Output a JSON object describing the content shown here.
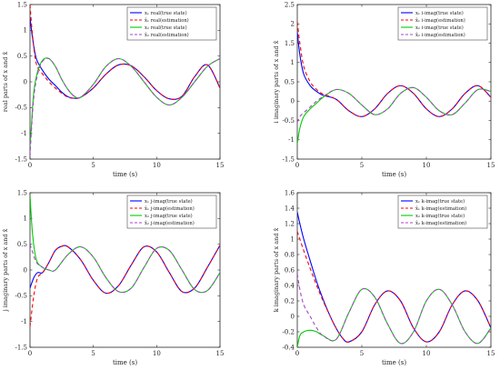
{
  "chart_data": [
    {
      "type": "line",
      "xlabel": "",
      "ylabel": "real parts of x and x̂",
      "xlim": [
        0,
        15
      ],
      "ylim": [
        -1.5,
        1.5
      ],
      "xticks": [
        0,
        5,
        10,
        15
      ],
      "yticks": [
        -1.5,
        -1,
        -0.5,
        0,
        0.5,
        1,
        1.5
      ],
      "ytick_labels": [
        "-1.5",
        "-1",
        "-0.5",
        "0",
        "0.5",
        "1",
        "1.5"
      ],
      "grid": false,
      "legend": "top-right",
      "series": [
        {
          "name": "x₁ real(true state)",
          "color": "#0000ff",
          "dash": "",
          "x": [
            0,
            0.2,
            0.5,
            1,
            1.5,
            2,
            2.5,
            3,
            3.5,
            4,
            5,
            6,
            7,
            8,
            9,
            10,
            11,
            12,
            13,
            14,
            15
          ],
          "y": [
            1.25,
            0.85,
            0.45,
            0.22,
            0.05,
            -0.07,
            -0.2,
            -0.29,
            -0.32,
            -0.3,
            -0.12,
            0.15,
            0.33,
            0.31,
            0.1,
            -0.17,
            -0.33,
            -0.28,
            0.1,
            0.33,
            -0.12
          ]
        },
        {
          "name": "x̂₁ real(estimation)",
          "color": "#ff0000",
          "dash": "4,3",
          "x": [
            0,
            0.2,
            0.5,
            1,
            1.5,
            2,
            2.5,
            3,
            3.5,
            4,
            5,
            6,
            7,
            8,
            9,
            10,
            11,
            12,
            13,
            14,
            15
          ],
          "y": [
            1.5,
            0.9,
            0.35,
            0.15,
            0.0,
            -0.12,
            -0.22,
            -0.3,
            -0.32,
            -0.3,
            -0.12,
            0.15,
            0.33,
            0.31,
            0.1,
            -0.17,
            -0.33,
            -0.28,
            0.1,
            0.33,
            -0.12
          ]
        },
        {
          "name": "x₂ real(true state)",
          "color": "#00cc00",
          "dash": "",
          "x": [
            0,
            0.1,
            0.3,
            0.6,
            1,
            1.5,
            2,
            2.5,
            3,
            3.5,
            4,
            5,
            6,
            7,
            8,
            9,
            10,
            11,
            12,
            13,
            14,
            15
          ],
          "y": [
            -1.25,
            -0.9,
            -0.2,
            0.2,
            0.42,
            0.45,
            0.3,
            0.05,
            -0.15,
            -0.28,
            -0.3,
            -0.05,
            0.3,
            0.45,
            0.3,
            0.0,
            -0.3,
            -0.45,
            -0.3,
            0.0,
            0.3,
            0.45
          ]
        },
        {
          "name": "x̂₂ real(estimation)",
          "color": "#aa44cc",
          "dash": "4,3",
          "x": [
            0,
            0.1,
            0.3,
            0.6,
            1,
            1.5,
            2,
            2.5,
            3,
            3.5,
            4,
            5,
            6,
            7,
            8,
            9,
            10,
            11,
            12,
            13,
            14,
            15
          ],
          "y": [
            -1.45,
            -1.0,
            -0.3,
            0.15,
            0.4,
            0.45,
            0.3,
            0.05,
            -0.15,
            -0.28,
            -0.3,
            -0.05,
            0.3,
            0.45,
            0.3,
            0.0,
            -0.3,
            -0.45,
            -0.3,
            0.0,
            0.3,
            0.45
          ]
        }
      ]
    },
    {
      "type": "line",
      "xlabel": "",
      "ylabel": "i imaginary parts of x and x̂",
      "xlim": [
        0,
        15
      ],
      "ylim": [
        -1.5,
        2.5
      ],
      "xticks": [
        0,
        5,
        10,
        15
      ],
      "yticks": [
        -1.5,
        -1,
        -0.5,
        0,
        0.5,
        1,
        1.5,
        2,
        2.5
      ],
      "ytick_labels": [
        "-1.5",
        "-1",
        "-0.5",
        "0",
        "0.5",
        "1",
        "1.5",
        "2",
        "2.5"
      ],
      "grid": false,
      "legend": "top-right",
      "series": [
        {
          "name": "x₁ i-imag(true state)",
          "color": "#0000ff",
          "dash": "",
          "x": [
            0,
            0.2,
            0.5,
            1,
            1.5,
            2,
            3,
            4,
            5,
            6,
            7,
            8,
            9,
            10,
            11,
            12,
            13,
            14,
            15
          ],
          "y": [
            1.8,
            1.2,
            0.7,
            0.4,
            0.25,
            0.15,
            0.05,
            -0.25,
            -0.4,
            -0.2,
            0.2,
            0.4,
            0.2,
            -0.2,
            -0.4,
            -0.2,
            0.2,
            0.4,
            0.1
          ]
        },
        {
          "name": "x̂₁ i-imag(estimation)",
          "color": "#ff0000",
          "dash": "4,3",
          "x": [
            0,
            0.2,
            0.5,
            1,
            1.5,
            2,
            3,
            4,
            5,
            6,
            7,
            8,
            9,
            10,
            11,
            12,
            13,
            14,
            15
          ],
          "y": [
            2.05,
            1.5,
            0.9,
            0.5,
            0.3,
            0.18,
            0.05,
            -0.25,
            -0.4,
            -0.2,
            0.2,
            0.4,
            0.2,
            -0.2,
            -0.4,
            -0.2,
            0.2,
            0.4,
            0.1
          ]
        },
        {
          "name": "x₂ i-imag(true state)",
          "color": "#00cc00",
          "dash": "",
          "x": [
            0,
            0.2,
            0.5,
            1,
            1.5,
            2,
            3,
            4,
            5,
            6,
            7,
            8,
            9,
            10,
            11,
            12,
            13,
            14,
            15
          ],
          "y": [
            -1.1,
            -0.7,
            -0.4,
            -0.2,
            -0.05,
            0.1,
            0.3,
            0.2,
            -0.1,
            -0.35,
            -0.2,
            0.2,
            0.35,
            0.1,
            -0.25,
            -0.35,
            -0.05,
            0.3,
            0.25
          ]
        },
        {
          "name": "x̂₂ i-imag(estimation)",
          "color": "#aa44cc",
          "dash": "4,3",
          "x": [
            0,
            0.2,
            0.5,
            1,
            1.5,
            2,
            3,
            4,
            5,
            6,
            7,
            8,
            9,
            10,
            11,
            12,
            13,
            14,
            15
          ],
          "y": [
            -0.55,
            -0.4,
            -0.3,
            -0.15,
            0.0,
            0.12,
            0.3,
            0.2,
            -0.1,
            -0.35,
            -0.2,
            0.2,
            0.35,
            0.1,
            -0.25,
            -0.35,
            -0.05,
            0.3,
            0.25
          ]
        }
      ]
    },
    {
      "type": "line",
      "xlabel": "",
      "ylabel": "j imaginary parts of x and x̂",
      "xlim": [
        0,
        15
      ],
      "ylim": [
        -1.5,
        1.5
      ],
      "xticks": [
        0,
        5,
        10,
        15
      ],
      "yticks": [
        -1.5,
        -1,
        -0.5,
        0,
        0.5,
        1,
        1.5
      ],
      "ytick_labels": [
        "-1.5",
        "-1",
        "-0.5",
        "0",
        "0.5",
        "1",
        "1.5"
      ],
      "grid": false,
      "legend": "top-right",
      "series": [
        {
          "name": "x₁ j-imag(true state)",
          "color": "#0000ff",
          "dash": "",
          "x": [
            0,
            0.3,
            0.6,
            1,
            1.5,
            2,
            2.5,
            3,
            4,
            5,
            6,
            7,
            8,
            9,
            10,
            11,
            12,
            13,
            14,
            15
          ],
          "y": [
            -0.35,
            -0.15,
            -0.05,
            -0.05,
            0.15,
            0.38,
            0.46,
            0.45,
            0.2,
            -0.2,
            -0.45,
            -0.3,
            0.1,
            0.45,
            0.35,
            -0.05,
            -0.42,
            -0.35,
            0.05,
            0.48
          ]
        },
        {
          "name": "x̂₁ j-imag(estimation)",
          "color": "#ff0000",
          "dash": "4,3",
          "x": [
            0,
            0.3,
            0.6,
            1,
            1.5,
            2,
            2.5,
            3,
            4,
            5,
            6,
            7,
            8,
            9,
            10,
            11,
            12,
            13,
            14,
            15
          ],
          "y": [
            -1.1,
            -0.5,
            -0.15,
            -0.05,
            0.15,
            0.38,
            0.46,
            0.45,
            0.2,
            -0.2,
            -0.45,
            -0.3,
            0.1,
            0.45,
            0.35,
            -0.05,
            -0.42,
            -0.35,
            0.05,
            0.48
          ]
        },
        {
          "name": "x₂ j-imag(true state)",
          "color": "#00cc00",
          "dash": "",
          "x": [
            0,
            0.2,
            0.5,
            1,
            1.5,
            2,
            3,
            4,
            5,
            6,
            7,
            8,
            9,
            10,
            11,
            12,
            13,
            14,
            15
          ],
          "y": [
            1.45,
            0.7,
            0.2,
            0.05,
            0.0,
            0.0,
            0.3,
            0.45,
            0.25,
            -0.15,
            -0.42,
            -0.35,
            0.05,
            0.42,
            0.38,
            0.0,
            -0.38,
            -0.4,
            -0.05
          ]
        },
        {
          "name": "x̂₂ j-imag(estimation)",
          "color": "#aa44cc",
          "dash": "4,3",
          "x": [
            0,
            0.2,
            0.5,
            1,
            1.5,
            2,
            3,
            4,
            5,
            6,
            7,
            8,
            9,
            10,
            11,
            12,
            13,
            14,
            15
          ],
          "y": [
            0.5,
            0.35,
            0.15,
            0.05,
            0.0,
            0.0,
            0.3,
            0.45,
            0.25,
            -0.15,
            -0.42,
            -0.35,
            0.05,
            0.42,
            0.38,
            0.0,
            -0.38,
            -0.4,
            -0.05
          ]
        }
      ]
    },
    {
      "type": "line",
      "xlabel": "",
      "ylabel": "k imaginary parts of x and x̂",
      "xlim": [
        0,
        15
      ],
      "ylim": [
        -0.4,
        1.6
      ],
      "xticks": [
        0,
        5,
        10,
        15
      ],
      "yticks": [
        -0.4,
        -0.2,
        0,
        0.2,
        0.4,
        0.6,
        0.8,
        1,
        1.2,
        1.4,
        1.6
      ],
      "ytick_labels": [
        "-0.4",
        "-0.2",
        "0",
        "0.2",
        "0.4",
        "0.6",
        "0.8",
        "1",
        "1.2",
        "1.4",
        "1.6"
      ],
      "grid": false,
      "legend": "top-right",
      "series": [
        {
          "name": "x₁ k-imag(true state)",
          "color": "#0000ff",
          "dash": "",
          "x": [
            0,
            0.2,
            0.5,
            1,
            1.5,
            2,
            2.5,
            3,
            3.5,
            4,
            5,
            6,
            7,
            8,
            9,
            10,
            11,
            12,
            13,
            14,
            15
          ],
          "y": [
            1.35,
            1.2,
            1.0,
            0.72,
            0.45,
            0.22,
            0.02,
            -0.15,
            -0.28,
            -0.33,
            -0.2,
            0.15,
            0.33,
            0.2,
            -0.15,
            -0.33,
            -0.2,
            0.15,
            0.33,
            0.2,
            -0.15
          ]
        },
        {
          "name": "x̂₁ k-imag(estimation)",
          "color": "#ff0000",
          "dash": "4,3",
          "x": [
            0,
            0.2,
            0.5,
            1,
            1.5,
            2,
            2.5,
            3,
            3.5,
            4,
            5,
            6,
            7,
            8,
            9,
            10,
            11,
            12,
            13,
            14,
            15
          ],
          "y": [
            1.1,
            1.0,
            0.85,
            0.62,
            0.4,
            0.2,
            0.02,
            -0.15,
            -0.28,
            -0.33,
            -0.2,
            0.15,
            0.33,
            0.2,
            -0.15,
            -0.33,
            -0.2,
            0.15,
            0.33,
            0.2,
            -0.15
          ]
        },
        {
          "name": "x₂ k-imag(true state)",
          "color": "#00cc00",
          "dash": "",
          "x": [
            0,
            0.2,
            0.5,
            1,
            1.5,
            2,
            3,
            4,
            5,
            6,
            7,
            8,
            9,
            10,
            11,
            12,
            13,
            14,
            15
          ],
          "y": [
            -0.4,
            -0.25,
            -0.2,
            -0.18,
            -0.2,
            -0.25,
            -0.3,
            0.05,
            0.35,
            0.25,
            -0.1,
            -0.35,
            -0.2,
            0.2,
            0.35,
            0.15,
            -0.2,
            -0.35,
            -0.15
          ]
        },
        {
          "name": "x̂₂ k-imag(estimation)",
          "color": "#aa44cc",
          "dash": "4,3",
          "x": [
            0,
            0.2,
            0.5,
            1,
            1.5,
            2,
            3,
            4,
            5,
            6,
            7,
            8,
            9,
            10,
            11,
            12,
            13,
            14,
            15
          ],
          "y": [
            0.55,
            0.35,
            0.15,
            0.0,
            -0.15,
            -0.25,
            -0.3,
            0.05,
            0.35,
            0.25,
            -0.1,
            -0.35,
            -0.2,
            0.2,
            0.35,
            0.15,
            -0.2,
            -0.35,
            -0.15
          ]
        }
      ]
    }
  ],
  "xlabel_text": "time (s)"
}
